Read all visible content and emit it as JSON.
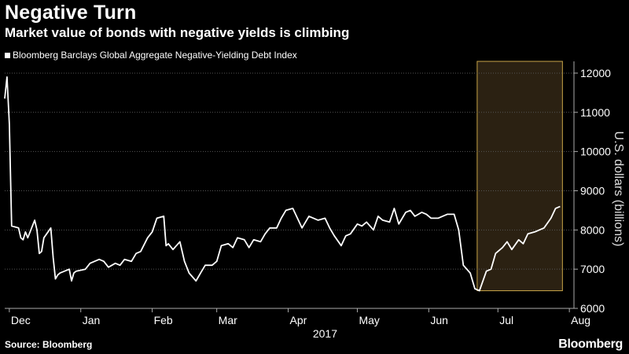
{
  "header": {
    "title": "Negative Turn",
    "subtitle": "Market value of bonds with negative yields is climbing"
  },
  "footer": {
    "source": "Source: Bloomberg",
    "brand": "Bloomberg"
  },
  "chart_data": {
    "type": "line",
    "series": [
      {
        "name": "Bloomberg Barclays Global Aggregate Negative-Yielding Debt Index",
        "color": "#ffffff",
        "points": [
          [
            "2016-11-29",
            11350
          ],
          [
            "2016-11-30",
            11900
          ],
          [
            "2016-12-01",
            10700
          ],
          [
            "2016-12-02",
            8100
          ],
          [
            "2016-12-05",
            8050
          ],
          [
            "2016-12-06",
            7800
          ],
          [
            "2016-12-07",
            7750
          ],
          [
            "2016-12-08",
            7950
          ],
          [
            "2016-12-09",
            7800
          ],
          [
            "2016-12-12",
            8250
          ],
          [
            "2016-12-13",
            8000
          ],
          [
            "2016-12-14",
            7400
          ],
          [
            "2016-12-15",
            7450
          ],
          [
            "2016-12-16",
            7800
          ],
          [
            "2016-12-19",
            8050
          ],
          [
            "2016-12-20",
            7300
          ],
          [
            "2016-12-21",
            6750
          ],
          [
            "2016-12-22",
            6850
          ],
          [
            "2016-12-23",
            6900
          ],
          [
            "2016-12-27",
            7000
          ],
          [
            "2016-12-28",
            6700
          ],
          [
            "2016-12-29",
            6900
          ],
          [
            "2016-12-30",
            6950
          ],
          [
            "2017-01-03",
            7000
          ],
          [
            "2017-01-05",
            7150
          ],
          [
            "2017-01-09",
            7250
          ],
          [
            "2017-01-11",
            7200
          ],
          [
            "2017-01-13",
            7050
          ],
          [
            "2017-01-16",
            7150
          ],
          [
            "2017-01-18",
            7100
          ],
          [
            "2017-01-20",
            7250
          ],
          [
            "2017-01-23",
            7200
          ],
          [
            "2017-01-25",
            7400
          ],
          [
            "2017-01-27",
            7450
          ],
          [
            "2017-01-30",
            7800
          ],
          [
            "2017-02-01",
            7950
          ],
          [
            "2017-02-03",
            8300
          ],
          [
            "2017-02-06",
            8350
          ],
          [
            "2017-02-07",
            7600
          ],
          [
            "2017-02-08",
            7650
          ],
          [
            "2017-02-10",
            7500
          ],
          [
            "2017-02-13",
            7700
          ],
          [
            "2017-02-15",
            7200
          ],
          [
            "2017-02-17",
            6900
          ],
          [
            "2017-02-20",
            6700
          ],
          [
            "2017-02-22",
            6900
          ],
          [
            "2017-02-24",
            7100
          ],
          [
            "2017-02-27",
            7100
          ],
          [
            "2017-03-01",
            7200
          ],
          [
            "2017-03-03",
            7600
          ],
          [
            "2017-03-06",
            7650
          ],
          [
            "2017-03-08",
            7550
          ],
          [
            "2017-03-10",
            7800
          ],
          [
            "2017-03-13",
            7750
          ],
          [
            "2017-03-15",
            7550
          ],
          [
            "2017-03-17",
            7750
          ],
          [
            "2017-03-20",
            7700
          ],
          [
            "2017-03-22",
            7900
          ],
          [
            "2017-03-24",
            8050
          ],
          [
            "2017-03-27",
            8050
          ],
          [
            "2017-03-29",
            8300
          ],
          [
            "2017-03-31",
            8500
          ],
          [
            "2017-04-03",
            8550
          ],
          [
            "2017-04-05",
            8300
          ],
          [
            "2017-04-07",
            8050
          ],
          [
            "2017-04-10",
            8350
          ],
          [
            "2017-04-12",
            8300
          ],
          [
            "2017-04-14",
            8250
          ],
          [
            "2017-04-17",
            8300
          ],
          [
            "2017-04-19",
            8050
          ],
          [
            "2017-04-21",
            7850
          ],
          [
            "2017-04-24",
            7600
          ],
          [
            "2017-04-26",
            7850
          ],
          [
            "2017-04-28",
            7900
          ],
          [
            "2017-05-01",
            8150
          ],
          [
            "2017-05-03",
            8100
          ],
          [
            "2017-05-05",
            8200
          ],
          [
            "2017-05-08",
            8000
          ],
          [
            "2017-05-10",
            8350
          ],
          [
            "2017-05-12",
            8250
          ],
          [
            "2017-05-15",
            8200
          ],
          [
            "2017-05-17",
            8550
          ],
          [
            "2017-05-19",
            8150
          ],
          [
            "2017-05-22",
            8450
          ],
          [
            "2017-05-24",
            8500
          ],
          [
            "2017-05-26",
            8350
          ],
          [
            "2017-05-29",
            8450
          ],
          [
            "2017-05-31",
            8400
          ],
          [
            "2017-06-02",
            8300
          ],
          [
            "2017-06-05",
            8300
          ],
          [
            "2017-06-07",
            8350
          ],
          [
            "2017-06-09",
            8400
          ],
          [
            "2017-06-12",
            8400
          ],
          [
            "2017-06-14",
            8000
          ],
          [
            "2017-06-16",
            7100
          ],
          [
            "2017-06-19",
            6900
          ],
          [
            "2017-06-21",
            6500
          ],
          [
            "2017-06-23",
            6450
          ],
          [
            "2017-06-26",
            6950
          ],
          [
            "2017-06-28",
            7000
          ],
          [
            "2017-06-30",
            7400
          ],
          [
            "2017-07-03",
            7550
          ],
          [
            "2017-07-05",
            7700
          ],
          [
            "2017-07-07",
            7500
          ],
          [
            "2017-07-10",
            7750
          ],
          [
            "2017-07-12",
            7650
          ],
          [
            "2017-07-14",
            7900
          ],
          [
            "2017-07-17",
            7950
          ],
          [
            "2017-07-19",
            8000
          ],
          [
            "2017-07-21",
            8050
          ],
          [
            "2017-07-24",
            8300
          ],
          [
            "2017-07-26",
            8550
          ],
          [
            "2017-07-28",
            8600
          ]
        ]
      }
    ],
    "x_ticks": [
      {
        "label": "Dec",
        "date": "2016-12-01"
      },
      {
        "label": "Jan",
        "date": "2017-01-01"
      },
      {
        "label": "Feb",
        "date": "2017-02-01"
      },
      {
        "label": "Mar",
        "date": "2017-03-01"
      },
      {
        "label": "Apr",
        "date": "2017-04-01"
      },
      {
        "label": "May",
        "date": "2017-05-01"
      },
      {
        "label": "Jun",
        "date": "2017-06-01"
      },
      {
        "label": "Jul",
        "date": "2017-07-01"
      },
      {
        "label": "Aug",
        "date": "2017-08-01"
      }
    ],
    "year_label": "2017",
    "y_ticks": [
      6000,
      7000,
      8000,
      9000,
      10000,
      11000,
      12000
    ],
    "ylim": [
      6000,
      12300
    ],
    "xlim": [
      "2016-11-29",
      "2017-08-03"
    ],
    "ylabel": "U.S. dollars (billions)",
    "y_axis_position": "right",
    "grid": "horizontal-dotted",
    "highlight": {
      "start": "2017-06-22",
      "end": "2017-07-29",
      "y_min": 6450,
      "color": "#2b2112",
      "border": "#c9a548"
    }
  }
}
